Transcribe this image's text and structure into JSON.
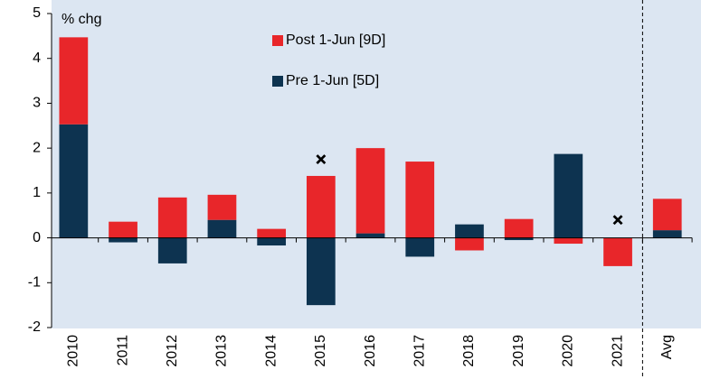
{
  "chart_data": {
    "type": "stacked_bar",
    "y_axis_label": "% chg",
    "categories": [
      "2010",
      "2011",
      "2012",
      "2013",
      "2014",
      "2015",
      "2016",
      "2017",
      "2018",
      "2019",
      "2020",
      "2021",
      "Avg"
    ],
    "series": [
      {
        "name": "Post 1-Jun [9D]",
        "color": "#e8262a",
        "values": [
          1.94,
          0.36,
          0.9,
          0.56,
          0.2,
          1.38,
          1.9,
          1.7,
          -0.28,
          0.42,
          -0.13,
          -0.63,
          0.7
        ]
      },
      {
        "name": "Pre 1-Jun [5D]",
        "color": "#0d3350",
        "values": [
          2.53,
          -0.1,
          -0.57,
          0.4,
          -0.17,
          -1.5,
          0.1,
          -0.42,
          0.3,
          -0.05,
          1.87,
          0,
          0.17
        ]
      }
    ],
    "marker_values": [
      null,
      null,
      null,
      null,
      null,
      1.75,
      null,
      null,
      null,
      null,
      null,
      0.4,
      null
    ],
    "ylim": [
      -2,
      5
    ],
    "yticks": [
      -2,
      -1,
      0,
      1,
      2,
      3,
      4,
      5
    ]
  }
}
